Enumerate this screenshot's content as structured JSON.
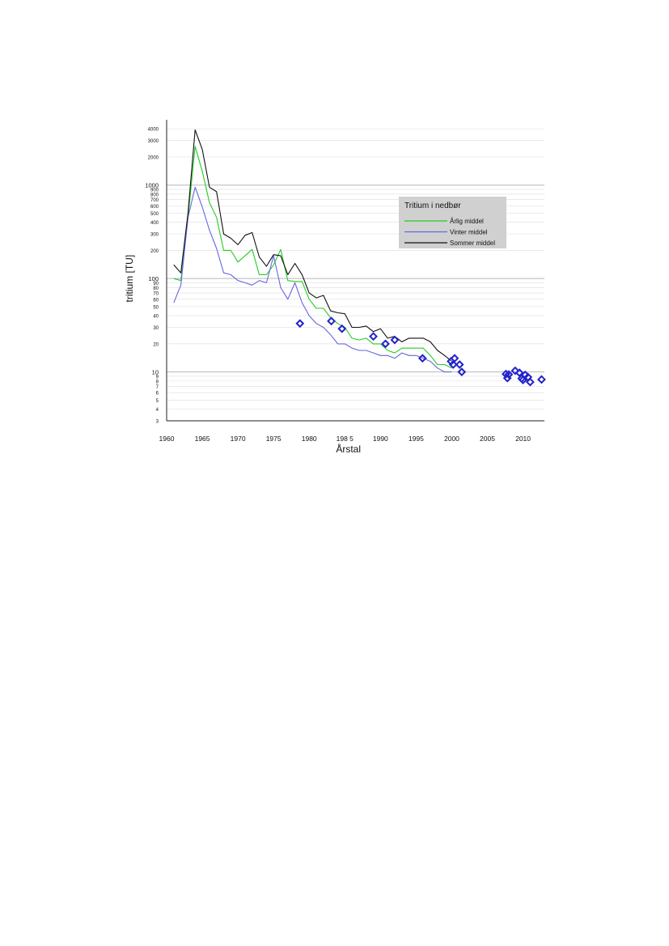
{
  "chart_data": {
    "type": "line",
    "title": "",
    "xlabel": "Årstal",
    "ylabel": "tritium [TU]",
    "xlim": [
      1960,
      2013
    ],
    "ylim": [
      3,
      5000
    ],
    "yscale": "log",
    "grid": true,
    "x_ticks": [
      1960,
      1965,
      1970,
      1975,
      1980,
      1985,
      1990,
      1995,
      2000,
      2005,
      2010
    ],
    "x_tick_labels": [
      "1960",
      "1965",
      "1970",
      "1975",
      "1980",
      "198  5",
      "1990",
      "1995",
      "2000",
      "2005",
      "2010"
    ],
    "y_ticks": [
      {
        "value": 3,
        "label": "3",
        "size": "small"
      },
      {
        "value": 4,
        "label": "4",
        "size": "small"
      },
      {
        "value": 5,
        "label": "5",
        "size": "small"
      },
      {
        "value": 6,
        "label": "6",
        "size": "small"
      },
      {
        "value": 7,
        "label": "7",
        "size": "small"
      },
      {
        "value": 8,
        "label": "8",
        "size": "small"
      },
      {
        "value": 9,
        "label": "9",
        "size": "small"
      },
      {
        "value": 10,
        "label": "10",
        "size": "major"
      },
      {
        "value": 20,
        "label": "20",
        "size": "small"
      },
      {
        "value": 30,
        "label": "30",
        "size": "small"
      },
      {
        "value": 40,
        "label": "40",
        "size": "small"
      },
      {
        "value": 50,
        "label": "50",
        "size": "small"
      },
      {
        "value": 60,
        "label": "60",
        "size": "small"
      },
      {
        "value": 70,
        "label": "70",
        "size": "small"
      },
      {
        "value": 80,
        "label": "80",
        "size": "small"
      },
      {
        "value": 90,
        "label": "90",
        "size": "small"
      },
      {
        "value": 100,
        "label": "100",
        "size": "major"
      },
      {
        "value": 200,
        "label": "200",
        "size": "small"
      },
      {
        "value": 300,
        "label": "300",
        "size": "small"
      },
      {
        "value": 400,
        "label": "400",
        "size": "small"
      },
      {
        "value": 500,
        "label": "500",
        "size": "small"
      },
      {
        "value": 600,
        "label": "600",
        "size": "small"
      },
      {
        "value": 700,
        "label": "700",
        "size": "small"
      },
      {
        "value": 800,
        "label": "800",
        "size": "small"
      },
      {
        "value": 900,
        "label": "900",
        "size": "small"
      },
      {
        "value": 1000,
        "label": "1000",
        "size": "major"
      },
      {
        "value": 2000,
        "label": "2000",
        "size": "small"
      },
      {
        "value": 3000,
        "label": "3000",
        "size": "small"
      },
      {
        "value": 4000,
        "label": "4000",
        "size": "small"
      }
    ],
    "legend": {
      "title": "Tritium i nedbør",
      "placement": "top-right",
      "background": "#d0d0d0"
    },
    "series": [
      {
        "name": "Årlig middel",
        "color": "#22cc22",
        "x": [
          1961,
          1962,
          1963,
          1964,
          1965,
          1966,
          1967,
          1968,
          1969,
          1970,
          1971,
          1972,
          1973,
          1974,
          1975,
          1976,
          1977,
          1978,
          1979,
          1980,
          1981,
          1982,
          1983,
          1984,
          1985,
          1986,
          1987,
          1988,
          1989,
          1990,
          1991,
          1992,
          1993,
          1994,
          1995,
          1996,
          1997,
          1998,
          1999,
          2000
        ],
        "y": [
          100,
          95,
          450,
          2600,
          1400,
          650,
          450,
          200,
          200,
          150,
          175,
          205,
          110,
          110,
          140,
          205,
          95,
          93,
          93,
          60,
          48,
          48,
          38,
          33,
          30,
          23,
          22,
          23,
          20,
          20,
          17,
          16,
          18,
          18,
          18,
          18,
          15,
          12,
          12,
          11
        ]
      },
      {
        "name": "Vinter middel",
        "color": "#6666dd",
        "x": [
          1961,
          1962,
          1963,
          1964,
          1965,
          1966,
          1967,
          1968,
          1969,
          1970,
          1971,
          1972,
          1973,
          1974,
          1975,
          1976,
          1977,
          1978,
          1979,
          1980,
          1981,
          1982,
          1983,
          1984,
          1985,
          1986,
          1987,
          1988,
          1989,
          1990,
          1991,
          1992,
          1993,
          1994,
          1995,
          1996,
          1997,
          1998,
          1999,
          2000
        ],
        "y": [
          55,
          85,
          450,
          950,
          580,
          330,
          210,
          115,
          110,
          95,
          90,
          85,
          95,
          90,
          175,
          80,
          60,
          90,
          55,
          40,
          33,
          30,
          25,
          20,
          20,
          18,
          17,
          17,
          16,
          15,
          15,
          14,
          16,
          15,
          15,
          14,
          13,
          11,
          10,
          10
        ]
      },
      {
        "name": "Sommer middel",
        "color": "#111111",
        "x": [
          1961,
          1962,
          1963,
          1964,
          1965,
          1966,
          1967,
          1968,
          1969,
          1970,
          1971,
          1972,
          1973,
          1974,
          1975,
          1976,
          1977,
          1978,
          1979,
          1980,
          1981,
          1982,
          1983,
          1984,
          1985,
          1986,
          1987,
          1988,
          1989,
          1990,
          1991,
          1992,
          1993,
          1994,
          1995,
          1996,
          1997,
          1998,
          1999,
          2000
        ],
        "y": [
          140,
          115,
          500,
          3900,
          2400,
          950,
          850,
          300,
          270,
          230,
          290,
          310,
          170,
          135,
          180,
          175,
          110,
          145,
          110,
          70,
          62,
          66,
          45,
          43,
          42,
          30,
          30,
          31,
          27,
          29,
          23,
          24,
          21,
          23,
          23,
          23,
          21,
          17,
          15,
          13
        ]
      },
      {
        "name": "",
        "type": "scatter",
        "marker": "diamond",
        "color": "#2222cc",
        "points": [
          [
            1978.7,
            33
          ],
          [
            1983.1,
            35
          ],
          [
            1984.6,
            29
          ],
          [
            1989.0,
            24
          ],
          [
            1990.7,
            20
          ],
          [
            1992.0,
            22
          ],
          [
            1995.9,
            14
          ],
          [
            1999.9,
            13
          ],
          [
            2000.2,
            12
          ],
          [
            2000.4,
            14
          ],
          [
            2001.1,
            12
          ],
          [
            2001.4,
            10
          ],
          [
            2007.6,
            9.5
          ],
          [
            2007.8,
            8.6
          ],
          [
            2008.0,
            9.4
          ],
          [
            2008.9,
            10.3
          ],
          [
            2009.5,
            9.8
          ],
          [
            2009.8,
            8.5
          ],
          [
            2010.0,
            8.2
          ],
          [
            2010.3,
            9.3
          ],
          [
            2010.7,
            8.8
          ],
          [
            2011.0,
            7.8
          ],
          [
            2012.6,
            8.3
          ]
        ]
      }
    ]
  }
}
